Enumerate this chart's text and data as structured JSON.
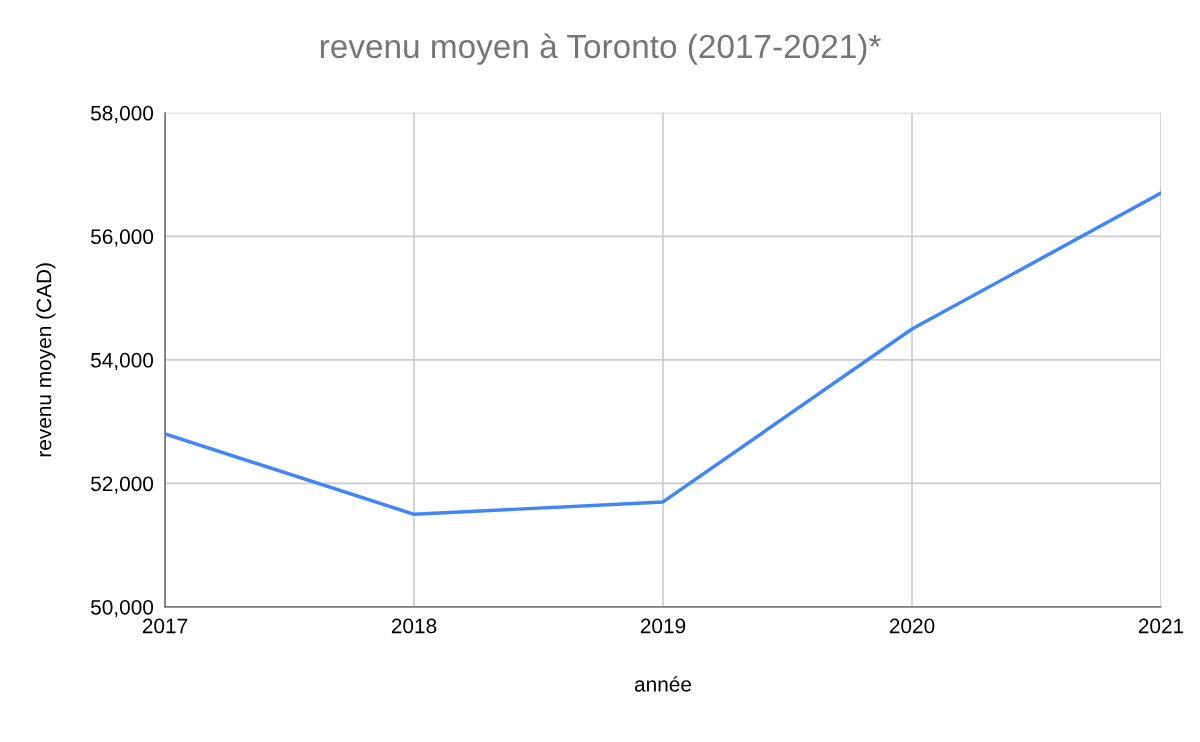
{
  "chart_data": {
    "type": "line",
    "title": "revenu moyen à Toronto (2017-2021)*",
    "xlabel": "année",
    "ylabel": "revenu moyen (CAD)",
    "x": [
      2017,
      2018,
      2019,
      2020,
      2021
    ],
    "series": [
      {
        "color": "#4285f4",
        "values": [
          52800,
          51500,
          51700,
          54500,
          56700
        ]
      }
    ],
    "xlim": [
      2017,
      2021
    ],
    "xticks": [
      2017,
      2018,
      2019,
      2020,
      2021
    ],
    "ylim": [
      50000,
      58000
    ],
    "yticks": [
      {
        "value": 50000,
        "label": "50,000"
      },
      {
        "value": 52000,
        "label": "52,000"
      },
      {
        "value": 54000,
        "label": "54,000"
      },
      {
        "value": 56000,
        "label": "56,000"
      },
      {
        "value": 58000,
        "label": "58,000"
      }
    ],
    "grid": true,
    "marker": "none",
    "line_style": "solid"
  }
}
